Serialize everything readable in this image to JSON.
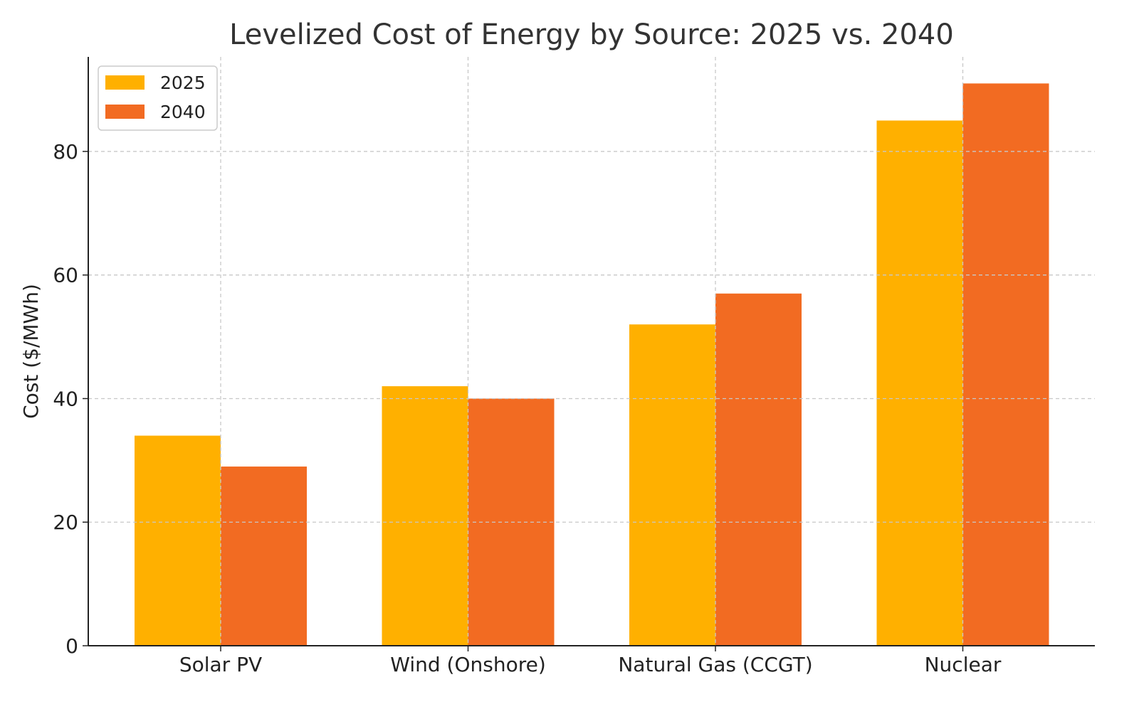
{
  "chart_data": {
    "type": "bar",
    "title": "Levelized Cost of Energy by Source: 2025 vs. 2040",
    "xlabel": "",
    "ylabel": "Cost ($/MWh)",
    "categories": [
      "Solar PV",
      "Wind (Onshore)",
      "Natural Gas (CCGT)",
      "Nuclear"
    ],
    "series": [
      {
        "name": "2025",
        "values": [
          34,
          42,
          52,
          85
        ],
        "color": "#FFB000"
      },
      {
        "name": "2040",
        "values": [
          29,
          40,
          57,
          91
        ],
        "color": "#F26B22"
      }
    ],
    "ylim": [
      0,
      95.3
    ],
    "yticks": [
      0,
      20,
      40,
      60,
      80
    ],
    "grid": true,
    "legend_position": "top-left"
  }
}
